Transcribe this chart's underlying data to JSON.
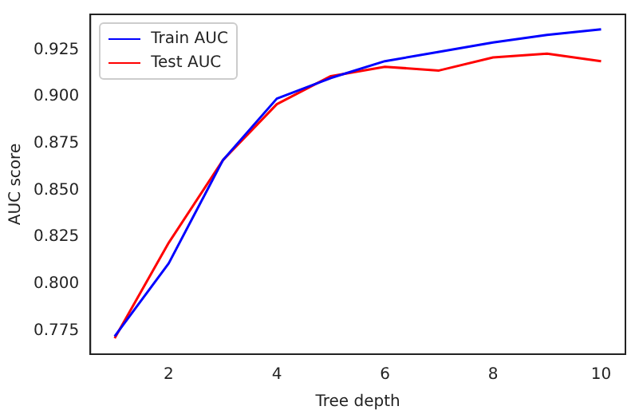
{
  "chart_data": {
    "type": "line",
    "xlabel": "Tree depth",
    "ylabel": "AUC score",
    "x": [
      1,
      2,
      3,
      4,
      5,
      6,
      7,
      8,
      9,
      10
    ],
    "series": [
      {
        "name": "Train AUC",
        "color": "#0000ff",
        "values": [
          0.772,
          0.811,
          0.866,
          0.899,
          0.91,
          0.919,
          0.924,
          0.929,
          0.933,
          0.936
        ]
      },
      {
        "name": "Test AUC",
        "color": "#ff0000",
        "values": [
          0.771,
          0.822,
          0.866,
          0.896,
          0.911,
          0.916,
          0.914,
          0.921,
          0.923,
          0.919
        ]
      }
    ],
    "xlim": [
      0.55,
      10.45
    ],
    "xticks": [
      2,
      4,
      6,
      8,
      10
    ],
    "ylim": [
      0.7625,
      0.944
    ],
    "yticks": [
      {
        "value": 0.775,
        "label": "0.775"
      },
      {
        "value": 0.8,
        "label": "0.800"
      },
      {
        "value": 0.825,
        "label": "0.825"
      },
      {
        "value": 0.85,
        "label": "0.850"
      },
      {
        "value": 0.875,
        "label": "0.875"
      },
      {
        "value": 0.9,
        "label": "0.900"
      },
      {
        "value": 0.925,
        "label": "0.925"
      }
    ],
    "grid": false,
    "legend": "top left",
    "marker": "none",
    "line_style": "solid"
  }
}
